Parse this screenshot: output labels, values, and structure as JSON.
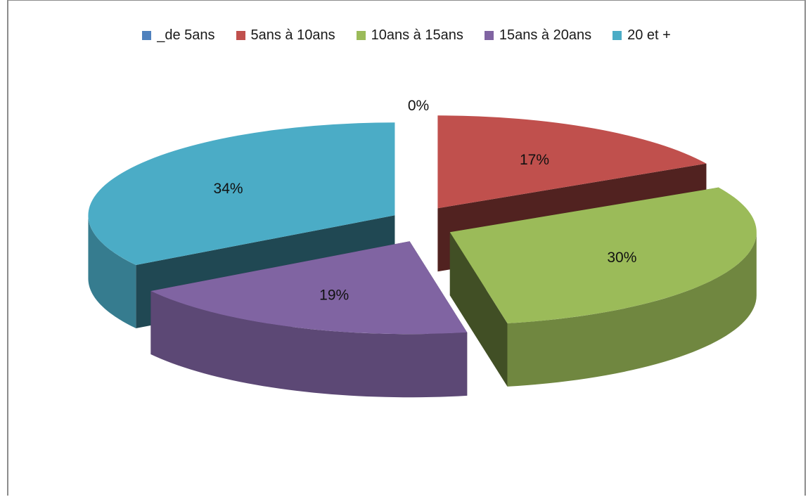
{
  "chart_data": {
    "type": "pie",
    "variant": "3d-exploded",
    "categories": [
      "_de 5ans",
      "5ans à 10ans",
      "10ans à 15ans",
      "15ans à 20ans",
      "20 et +"
    ],
    "values": [
      0,
      17,
      30,
      19,
      34
    ],
    "data_labels": [
      "0%",
      "17%",
      "30%",
      "19%",
      "34%"
    ],
    "colors": [
      "#4f81bd",
      "#c0504d",
      "#9bbb59",
      "#8064a2",
      "#4bacc6"
    ],
    "legend_position": "top",
    "title": ""
  }
}
